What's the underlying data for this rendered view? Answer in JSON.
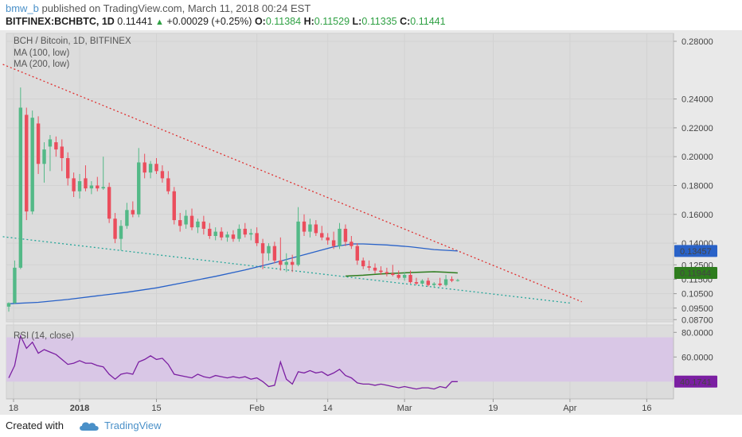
{
  "header": {
    "user": "bmw_b",
    "published_text": " published on TradingView.com, March 11, 2018 00:24 EST",
    "symbol": "BITFINEX:BCHBTC, 1D",
    "last": "0.11441",
    "change": "+0.00029 (+0.25%)",
    "o_label": "O:",
    "o": "0.11384",
    "h_label": "H:",
    "h": "0.11529",
    "l_label": "L:",
    "l": "0.11335",
    "c_label": "C:",
    "c": "0.11441"
  },
  "chart_labels": {
    "title": "BCH / Bitcoin, 1D, BITFINEX",
    "ma100": "MA (100, low)",
    "ma200": "MA (200, low)",
    "rsi": "RSI (14, close)"
  },
  "footer": {
    "created_with": "Created with",
    "brand": "TradingView"
  },
  "colors": {
    "up": "#53b987",
    "down": "#eb4d5c",
    "ma100": "#2962c8",
    "ma200": "#2e7d1e",
    "rsi": "#7b1fa2",
    "rsi_band": "#d9c7e6",
    "upper_trend": "#e03030",
    "lower_trend": "#26a69a"
  },
  "chart_data": [
    {
      "type": "candlestick",
      "title": "BCH / Bitcoin, 1D, BITFINEX",
      "ylim": [
        0.0855,
        0.2855
      ],
      "x_tick_labels": [
        "18",
        "2018",
        "15",
        "Feb",
        "14",
        "Mar",
        "19",
        "Apr",
        "16"
      ],
      "y_ticks": [
        "0.08700",
        "0.09500",
        "0.10500",
        "0.11500",
        "0.12500",
        "0.14000",
        "0.16000",
        "0.18000",
        "0.20000",
        "0.22000",
        "0.24000",
        "0.28000"
      ],
      "last_price_label": "0.11441",
      "candles": [
        {
          "o": 0.096,
          "h": 0.099,
          "l": 0.0925,
          "c": 0.0985
        },
        {
          "o": 0.0985,
          "h": 0.128,
          "l": 0.098,
          "c": 0.123
        },
        {
          "o": 0.123,
          "h": 0.248,
          "l": 0.122,
          "c": 0.234
        },
        {
          "o": 0.229,
          "h": 0.234,
          "l": 0.156,
          "c": 0.162
        },
        {
          "o": 0.162,
          "h": 0.232,
          "l": 0.16,
          "c": 0.227
        },
        {
          "o": 0.223,
          "h": 0.228,
          "l": 0.188,
          "c": 0.195
        },
        {
          "o": 0.195,
          "h": 0.21,
          "l": 0.182,
          "c": 0.205
        },
        {
          "o": 0.207,
          "h": 0.215,
          "l": 0.19,
          "c": 0.212
        },
        {
          "o": 0.21,
          "h": 0.214,
          "l": 0.2,
          "c": 0.205
        },
        {
          "o": 0.207,
          "h": 0.212,
          "l": 0.19,
          "c": 0.199
        },
        {
          "o": 0.199,
          "h": 0.203,
          "l": 0.18,
          "c": 0.185
        },
        {
          "o": 0.185,
          "h": 0.189,
          "l": 0.172,
          "c": 0.176
        },
        {
          "o": 0.176,
          "h": 0.188,
          "l": 0.171,
          "c": 0.183
        },
        {
          "o": 0.185,
          "h": 0.194,
          "l": 0.176,
          "c": 0.178
        },
        {
          "o": 0.178,
          "h": 0.183,
          "l": 0.174,
          "c": 0.18
        },
        {
          "o": 0.18,
          "h": 0.186,
          "l": 0.176,
          "c": 0.178
        },
        {
          "o": 0.178,
          "h": 0.2,
          "l": 0.177,
          "c": 0.179
        },
        {
          "o": 0.179,
          "h": 0.182,
          "l": 0.154,
          "c": 0.157
        },
        {
          "o": 0.157,
          "h": 0.161,
          "l": 0.14,
          "c": 0.143
        },
        {
          "o": 0.143,
          "h": 0.156,
          "l": 0.135,
          "c": 0.152
        },
        {
          "o": 0.152,
          "h": 0.168,
          "l": 0.15,
          "c": 0.163
        },
        {
          "o": 0.163,
          "h": 0.169,
          "l": 0.158,
          "c": 0.16
        },
        {
          "o": 0.16,
          "h": 0.206,
          "l": 0.158,
          "c": 0.196
        },
        {
          "o": 0.196,
          "h": 0.202,
          "l": 0.185,
          "c": 0.189
        },
        {
          "o": 0.189,
          "h": 0.197,
          "l": 0.185,
          "c": 0.195
        },
        {
          "o": 0.195,
          "h": 0.199,
          "l": 0.188,
          "c": 0.19
        },
        {
          "o": 0.19,
          "h": 0.194,
          "l": 0.182,
          "c": 0.185
        },
        {
          "o": 0.185,
          "h": 0.19,
          "l": 0.174,
          "c": 0.176
        },
        {
          "o": 0.176,
          "h": 0.179,
          "l": 0.153,
          "c": 0.156
        },
        {
          "o": 0.156,
          "h": 0.161,
          "l": 0.148,
          "c": 0.152
        },
        {
          "o": 0.153,
          "h": 0.163,
          "l": 0.15,
          "c": 0.159
        },
        {
          "o": 0.159,
          "h": 0.164,
          "l": 0.149,
          "c": 0.151
        },
        {
          "o": 0.151,
          "h": 0.157,
          "l": 0.147,
          "c": 0.155
        },
        {
          "o": 0.155,
          "h": 0.159,
          "l": 0.146,
          "c": 0.15
        },
        {
          "o": 0.15,
          "h": 0.154,
          "l": 0.143,
          "c": 0.145
        },
        {
          "o": 0.145,
          "h": 0.151,
          "l": 0.142,
          "c": 0.148
        },
        {
          "o": 0.148,
          "h": 0.151,
          "l": 0.142,
          "c": 0.144
        },
        {
          "o": 0.144,
          "h": 0.148,
          "l": 0.141,
          "c": 0.146
        },
        {
          "o": 0.146,
          "h": 0.149,
          "l": 0.141,
          "c": 0.143
        },
        {
          "o": 0.143,
          "h": 0.153,
          "l": 0.141,
          "c": 0.15
        },
        {
          "o": 0.15,
          "h": 0.154,
          "l": 0.144,
          "c": 0.146
        },
        {
          "o": 0.146,
          "h": 0.15,
          "l": 0.142,
          "c": 0.147
        },
        {
          "o": 0.147,
          "h": 0.151,
          "l": 0.138,
          "c": 0.14
        },
        {
          "o": 0.14,
          "h": 0.143,
          "l": 0.122,
          "c": 0.133
        },
        {
          "o": 0.133,
          "h": 0.14,
          "l": 0.128,
          "c": 0.138
        },
        {
          "o": 0.138,
          "h": 0.141,
          "l": 0.126,
          "c": 0.128
        },
        {
          "o": 0.128,
          "h": 0.144,
          "l": 0.121,
          "c": 0.125
        },
        {
          "o": 0.125,
          "h": 0.133,
          "l": 0.12,
          "c": 0.127
        },
        {
          "o": 0.127,
          "h": 0.132,
          "l": 0.12,
          "c": 0.125
        },
        {
          "o": 0.125,
          "h": 0.165,
          "l": 0.124,
          "c": 0.155
        },
        {
          "o": 0.155,
          "h": 0.16,
          "l": 0.145,
          "c": 0.148
        },
        {
          "o": 0.148,
          "h": 0.157,
          "l": 0.144,
          "c": 0.153
        },
        {
          "o": 0.153,
          "h": 0.156,
          "l": 0.145,
          "c": 0.147
        },
        {
          "o": 0.147,
          "h": 0.152,
          "l": 0.142,
          "c": 0.144
        },
        {
          "o": 0.144,
          "h": 0.147,
          "l": 0.139,
          "c": 0.142
        },
        {
          "o": 0.142,
          "h": 0.148,
          "l": 0.136,
          "c": 0.138
        },
        {
          "o": 0.138,
          "h": 0.154,
          "l": 0.136,
          "c": 0.15
        },
        {
          "o": 0.15,
          "h": 0.153,
          "l": 0.138,
          "c": 0.141
        },
        {
          "o": 0.141,
          "h": 0.145,
          "l": 0.136,
          "c": 0.138
        },
        {
          "o": 0.138,
          "h": 0.14,
          "l": 0.125,
          "c": 0.128
        },
        {
          "o": 0.128,
          "h": 0.13,
          "l": 0.122,
          "c": 0.124
        },
        {
          "o": 0.124,
          "h": 0.128,
          "l": 0.121,
          "c": 0.123
        },
        {
          "o": 0.123,
          "h": 0.126,
          "l": 0.119,
          "c": 0.121
        },
        {
          "o": 0.121,
          "h": 0.124,
          "l": 0.118,
          "c": 0.12
        },
        {
          "o": 0.12,
          "h": 0.123,
          "l": 0.117,
          "c": 0.119
        },
        {
          "o": 0.119,
          "h": 0.125,
          "l": 0.117,
          "c": 0.118
        },
        {
          "o": 0.118,
          "h": 0.121,
          "l": 0.115,
          "c": 0.116
        },
        {
          "o": 0.116,
          "h": 0.12,
          "l": 0.114,
          "c": 0.118
        },
        {
          "o": 0.118,
          "h": 0.121,
          "l": 0.112,
          "c": 0.113
        },
        {
          "o": 0.113,
          "h": 0.116,
          "l": 0.111,
          "c": 0.112
        },
        {
          "o": 0.112,
          "h": 0.115,
          "l": 0.111,
          "c": 0.114
        },
        {
          "o": 0.114,
          "h": 0.116,
          "l": 0.11,
          "c": 0.111
        },
        {
          "o": 0.111,
          "h": 0.113,
          "l": 0.109,
          "c": 0.112
        },
        {
          "o": 0.112,
          "h": 0.116,
          "l": 0.11,
          "c": 0.111
        },
        {
          "o": 0.111,
          "h": 0.118,
          "l": 0.11,
          "c": 0.115
        },
        {
          "o": 0.115,
          "h": 0.117,
          "l": 0.113,
          "c": 0.114
        },
        {
          "o": 0.1138,
          "h": 0.1153,
          "l": 0.1134,
          "c": 0.1144
        }
      ],
      "ma100": {
        "name": "MA (100, low)",
        "last_label": "0.13457",
        "points": [
          {
            "i": 0,
            "y": 0.098
          },
          {
            "i": 5,
            "y": 0.099
          },
          {
            "i": 10,
            "y": 0.101
          },
          {
            "i": 15,
            "y": 0.1035
          },
          {
            "i": 20,
            "y": 0.106
          },
          {
            "i": 25,
            "y": 0.109
          },
          {
            "i": 30,
            "y": 0.113
          },
          {
            "i": 35,
            "y": 0.117
          },
          {
            "i": 40,
            "y": 0.1215
          },
          {
            "i": 45,
            "y": 0.1265
          },
          {
            "i": 50,
            "y": 0.132
          },
          {
            "i": 55,
            "y": 0.1375
          },
          {
            "i": 58,
            "y": 0.1395
          },
          {
            "i": 60,
            "y": 0.1395
          },
          {
            "i": 64,
            "y": 0.1388
          },
          {
            "i": 68,
            "y": 0.1375
          },
          {
            "i": 72,
            "y": 0.1356
          },
          {
            "i": 76,
            "y": 0.1346
          }
        ]
      },
      "ma200": {
        "name": "MA (200, low)",
        "last_label": "0.11944",
        "points": [
          {
            "i": 57,
            "y": 0.1172
          },
          {
            "i": 60,
            "y": 0.1178
          },
          {
            "i": 63,
            "y": 0.1187
          },
          {
            "i": 66,
            "y": 0.1193
          },
          {
            "i": 69,
            "y": 0.1198
          },
          {
            "i": 72,
            "y": 0.1202
          },
          {
            "i": 74,
            "y": 0.1199
          },
          {
            "i": 76,
            "y": 0.1194
          }
        ]
      },
      "upper_trendline": [
        {
          "i": -1,
          "y": 0.264
        },
        {
          "i": 97,
          "y": 0.0994
        }
      ],
      "lower_trendline": [
        {
          "i": -1,
          "y": 0.1445
        },
        {
          "i": 95,
          "y": 0.0985
        }
      ]
    },
    {
      "type": "line",
      "title": "RSI (14, close)",
      "ylim": [
        26,
        86
      ],
      "y_ticks": [
        "80.0000",
        "60.0000"
      ],
      "band": [
        40,
        76
      ],
      "last_label": "40.1741",
      "points": [
        {
          "i": 0,
          "y": 43
        },
        {
          "i": 1,
          "y": 53
        },
        {
          "i": 2,
          "y": 77
        },
        {
          "i": 3,
          "y": 67
        },
        {
          "i": 4,
          "y": 72
        },
        {
          "i": 5,
          "y": 63
        },
        {
          "i": 6,
          "y": 66
        },
        {
          "i": 7,
          "y": 64
        },
        {
          "i": 8,
          "y": 62
        },
        {
          "i": 9,
          "y": 58
        },
        {
          "i": 10,
          "y": 54
        },
        {
          "i": 11,
          "y": 55
        },
        {
          "i": 12,
          "y": 57
        },
        {
          "i": 13,
          "y": 55
        },
        {
          "i": 14,
          "y": 55
        },
        {
          "i": 15,
          "y": 53
        },
        {
          "i": 16,
          "y": 52
        },
        {
          "i": 17,
          "y": 46
        },
        {
          "i": 18,
          "y": 42
        },
        {
          "i": 19,
          "y": 46
        },
        {
          "i": 20,
          "y": 47
        },
        {
          "i": 21,
          "y": 46
        },
        {
          "i": 22,
          "y": 56
        },
        {
          "i": 23,
          "y": 58
        },
        {
          "i": 24,
          "y": 61
        },
        {
          "i": 25,
          "y": 58
        },
        {
          "i": 26,
          "y": 59
        },
        {
          "i": 27,
          "y": 54
        },
        {
          "i": 28,
          "y": 46
        },
        {
          "i": 29,
          "y": 45
        },
        {
          "i": 30,
          "y": 44
        },
        {
          "i": 31,
          "y": 43
        },
        {
          "i": 32,
          "y": 46
        },
        {
          "i": 33,
          "y": 44
        },
        {
          "i": 34,
          "y": 43
        },
        {
          "i": 35,
          "y": 45
        },
        {
          "i": 36,
          "y": 44
        },
        {
          "i": 37,
          "y": 43
        },
        {
          "i": 38,
          "y": 44
        },
        {
          "i": 39,
          "y": 43
        },
        {
          "i": 40,
          "y": 44
        },
        {
          "i": 41,
          "y": 42
        },
        {
          "i": 42,
          "y": 43
        },
        {
          "i": 43,
          "y": 40
        },
        {
          "i": 44,
          "y": 36
        },
        {
          "i": 45,
          "y": 37
        },
        {
          "i": 46,
          "y": 56
        },
        {
          "i": 47,
          "y": 42
        },
        {
          "i": 48,
          "y": 38
        },
        {
          "i": 49,
          "y": 48
        },
        {
          "i": 50,
          "y": 47
        },
        {
          "i": 51,
          "y": 49
        },
        {
          "i": 52,
          "y": 47
        },
        {
          "i": 53,
          "y": 48
        },
        {
          "i": 54,
          "y": 45
        },
        {
          "i": 55,
          "y": 47
        },
        {
          "i": 56,
          "y": 50
        },
        {
          "i": 57,
          "y": 45
        },
        {
          "i": 58,
          "y": 43
        },
        {
          "i": 59,
          "y": 39
        },
        {
          "i": 60,
          "y": 38
        },
        {
          "i": 61,
          "y": 38
        },
        {
          "i": 62,
          "y": 37
        },
        {
          "i": 63,
          "y": 38
        },
        {
          "i": 64,
          "y": 37
        },
        {
          "i": 65,
          "y": 36
        },
        {
          "i": 66,
          "y": 35
        },
        {
          "i": 67,
          "y": 36
        },
        {
          "i": 68,
          "y": 35
        },
        {
          "i": 69,
          "y": 34
        },
        {
          "i": 70,
          "y": 35
        },
        {
          "i": 71,
          "y": 35
        },
        {
          "i": 72,
          "y": 34
        },
        {
          "i": 73,
          "y": 36
        },
        {
          "i": 74,
          "y": 35
        },
        {
          "i": 75,
          "y": 40
        },
        {
          "i": 76,
          "y": 40
        }
      ]
    }
  ]
}
